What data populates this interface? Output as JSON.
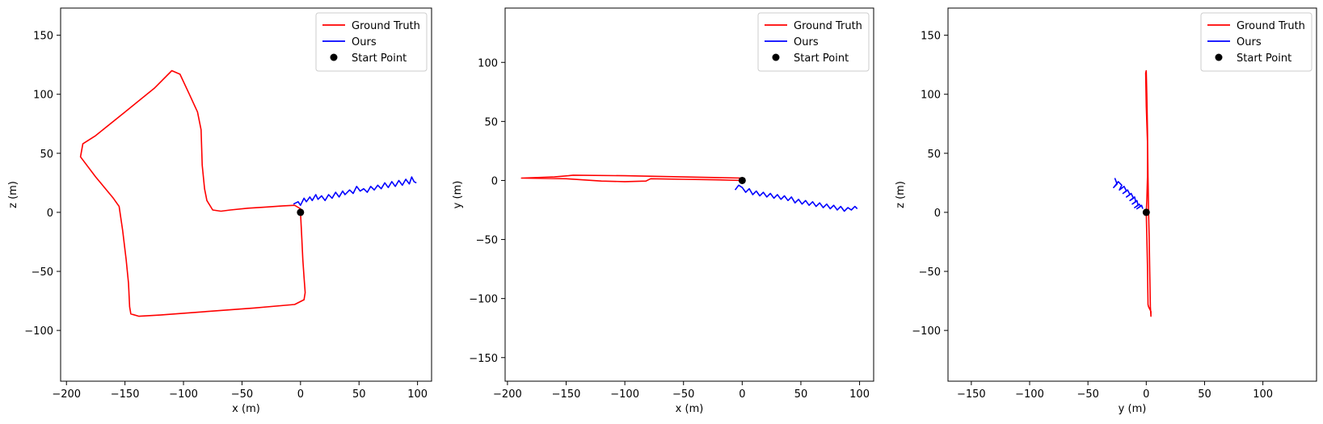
{
  "colors": {
    "ground_truth": "#ff0000",
    "ours": "#0000ff",
    "start_point": "#000000"
  },
  "chart_data": [
    {
      "type": "line",
      "xlabel": "x (m)",
      "ylabel": "z (m)",
      "xlim": [
        -205,
        112
      ],
      "ylim": [
        -143,
        173
      ],
      "xticks": [
        -200,
        -150,
        -100,
        -50,
        0,
        50,
        100
      ],
      "yticks": [
        -100,
        -50,
        0,
        50,
        100,
        150
      ],
      "legend_position": "top-right",
      "series": [
        {
          "name": "Ground Truth",
          "color": "#ff0000",
          "points": [
            [
              0,
              0
            ],
            [
              1,
              -20
            ],
            [
              2,
              -40
            ],
            [
              3,
              -55
            ],
            [
              4,
              -68
            ],
            [
              3,
              -74
            ],
            [
              -5,
              -78
            ],
            [
              -40,
              -81
            ],
            [
              -80,
              -84
            ],
            [
              -120,
              -87
            ],
            [
              -138,
              -88
            ],
            [
              -145,
              -86
            ],
            [
              -146,
              -80
            ],
            [
              -147,
              -60
            ],
            [
              -149,
              -40
            ],
            [
              -152,
              -15
            ],
            [
              -155,
              5
            ],
            [
              -160,
              12
            ],
            [
              -175,
              30
            ],
            [
              -188,
              47
            ],
            [
              -186,
              58
            ],
            [
              -175,
              65
            ],
            [
              -150,
              85
            ],
            [
              -125,
              105
            ],
            [
              -110,
              120
            ],
            [
              -103,
              117
            ],
            [
              -95,
              100
            ],
            [
              -88,
              85
            ],
            [
              -85,
              70
            ],
            [
              -84,
              40
            ],
            [
              -82,
              20
            ],
            [
              -80,
              10
            ],
            [
              -75,
              2
            ],
            [
              -68,
              1
            ],
            [
              -60,
              2
            ],
            [
              -45,
              3.5
            ],
            [
              -30,
              4.5
            ],
            [
              -15,
              5.5
            ],
            [
              -5,
              6
            ],
            [
              0,
              3
            ],
            [
              0,
              0
            ]
          ]
        },
        {
          "name": "Ours",
          "color": "#0000ff",
          "points": [
            [
              -6,
              7
            ],
            [
              -2,
              9
            ],
            [
              0,
              6
            ],
            [
              3,
              12
            ],
            [
              5,
              9
            ],
            [
              8,
              13
            ],
            [
              10,
              10
            ],
            [
              13,
              15
            ],
            [
              15,
              11
            ],
            [
              18,
              14
            ],
            [
              21,
              10
            ],
            [
              24,
              15
            ],
            [
              27,
              12
            ],
            [
              30,
              17
            ],
            [
              33,
              13
            ],
            [
              36,
              18
            ],
            [
              38,
              15
            ],
            [
              42,
              19
            ],
            [
              45,
              16
            ],
            [
              48,
              22
            ],
            [
              51,
              18
            ],
            [
              54,
              20
            ],
            [
              57,
              17
            ],
            [
              60,
              22
            ],
            [
              63,
              19
            ],
            [
              66,
              23
            ],
            [
              69,
              20
            ],
            [
              72,
              25
            ],
            [
              75,
              21
            ],
            [
              78,
              26
            ],
            [
              81,
              22
            ],
            [
              84,
              27
            ],
            [
              87,
              23
            ],
            [
              90,
              28
            ],
            [
              93,
              24
            ],
            [
              95,
              30
            ],
            [
              97,
              26
            ],
            [
              99,
              25
            ]
          ]
        },
        {
          "name": "Start Point",
          "color": "#000000",
          "marker": "dot",
          "points": [
            [
              0,
              0
            ]
          ]
        }
      ]
    },
    {
      "type": "line",
      "xlabel": "x (m)",
      "ylabel": "y (m)",
      "xlim": [
        -202,
        112
      ],
      "ylim": [
        -170,
        146
      ],
      "xticks": [
        -200,
        -150,
        -100,
        -50,
        0,
        50,
        100
      ],
      "yticks": [
        -150,
        -100,
        -50,
        0,
        50,
        100
      ],
      "legend_position": "top-right",
      "series": [
        {
          "name": "Ground Truth",
          "color": "#ff0000",
          "points": [
            [
              0,
              0
            ],
            [
              -20,
              0.5
            ],
            [
              -50,
              1
            ],
            [
              -78,
              1.5
            ],
            [
              -80,
              0.5
            ],
            [
              -82,
              -0.5
            ],
            [
              -100,
              -1
            ],
            [
              -120,
              -0.5
            ],
            [
              -150,
              1.5
            ],
            [
              -188,
              2
            ],
            [
              -160,
              3
            ],
            [
              -148,
              4
            ],
            [
              -144,
              4.5
            ],
            [
              -100,
              4
            ],
            [
              -50,
              3
            ],
            [
              0,
              2
            ],
            [
              0,
              0
            ]
          ]
        },
        {
          "name": "Ours",
          "color": "#0000ff",
          "points": [
            [
              -6,
              -8
            ],
            [
              -3,
              -4
            ],
            [
              0,
              -6
            ],
            [
              3,
              -10
            ],
            [
              6,
              -7
            ],
            [
              9,
              -12
            ],
            [
              12,
              -9
            ],
            [
              15,
              -13
            ],
            [
              18,
              -10
            ],
            [
              21,
              -14
            ],
            [
              24,
              -11
            ],
            [
              27,
              -15
            ],
            [
              30,
              -12
            ],
            [
              33,
              -16
            ],
            [
              36,
              -13
            ],
            [
              39,
              -17
            ],
            [
              42,
              -14
            ],
            [
              45,
              -19
            ],
            [
              48,
              -16
            ],
            [
              51,
              -20
            ],
            [
              54,
              -17
            ],
            [
              57,
              -21
            ],
            [
              60,
              -18
            ],
            [
              63,
              -22
            ],
            [
              66,
              -19
            ],
            [
              69,
              -23
            ],
            [
              72,
              -20
            ],
            [
              75,
              -24
            ],
            [
              78,
              -21
            ],
            [
              81,
              -25
            ],
            [
              84,
              -22
            ],
            [
              87,
              -26
            ],
            [
              90,
              -23
            ],
            [
              93,
              -25
            ],
            [
              96,
              -22
            ],
            [
              98,
              -24
            ]
          ]
        },
        {
          "name": "Start Point",
          "color": "#000000",
          "marker": "dot",
          "points": [
            [
              0,
              0
            ]
          ]
        }
      ]
    },
    {
      "type": "line",
      "xlabel": "y (m)",
      "ylabel": "z (m)",
      "xlim": [
        -170,
        146
      ],
      "ylim": [
        -143,
        173
      ],
      "xticks": [
        -150,
        -100,
        -50,
        0,
        50,
        100
      ],
      "yticks": [
        -100,
        -50,
        0,
        50,
        100,
        150
      ],
      "legend_position": "top-right",
      "series": [
        {
          "name": "Ground Truth",
          "color": "#ff0000",
          "points": [
            [
              0,
              0
            ],
            [
              0.5,
              -20
            ],
            [
              1,
              -45
            ],
            [
              1.5,
              -78
            ],
            [
              2,
              -80
            ],
            [
              4,
              -84
            ],
            [
              4,
              -88
            ],
            [
              3.5,
              -80
            ],
            [
              3,
              -50
            ],
            [
              2.5,
              -20
            ],
            [
              2,
              0
            ],
            [
              1.5,
              30
            ],
            [
              1,
              70
            ],
            [
              0.5,
              100
            ],
            [
              0,
              120
            ],
            [
              -0.5,
              118
            ],
            [
              0,
              90
            ],
            [
              1,
              60
            ],
            [
              1,
              30
            ],
            [
              0.5,
              10
            ],
            [
              0,
              0
            ]
          ]
        },
        {
          "name": "Ours",
          "color": "#0000ff",
          "points": [
            [
              -27,
              29
            ],
            [
              -25,
              24
            ],
            [
              -28,
              21
            ],
            [
              -24,
              26
            ],
            [
              -21,
              23
            ],
            [
              -23,
              19
            ],
            [
              -19,
              22
            ],
            [
              -17,
              18
            ],
            [
              -20,
              16
            ],
            [
              -16,
              19
            ],
            [
              -14,
              15
            ],
            [
              -17,
              13
            ],
            [
              -13,
              16
            ],
            [
              -11,
              12
            ],
            [
              -14,
              10
            ],
            [
              -10,
              13
            ],
            [
              -9,
              9
            ],
            [
              -12,
              7
            ],
            [
              -8,
              10
            ],
            [
              -7,
              6
            ],
            [
              -10,
              4
            ],
            [
              -6,
              7
            ],
            [
              -5,
              5
            ],
            [
              -8,
              3
            ],
            [
              -4,
              6
            ],
            [
              -3,
              3
            ]
          ]
        },
        {
          "name": "Start Point",
          "color": "#000000",
          "marker": "dot",
          "points": [
            [
              0,
              0
            ]
          ]
        }
      ]
    }
  ]
}
